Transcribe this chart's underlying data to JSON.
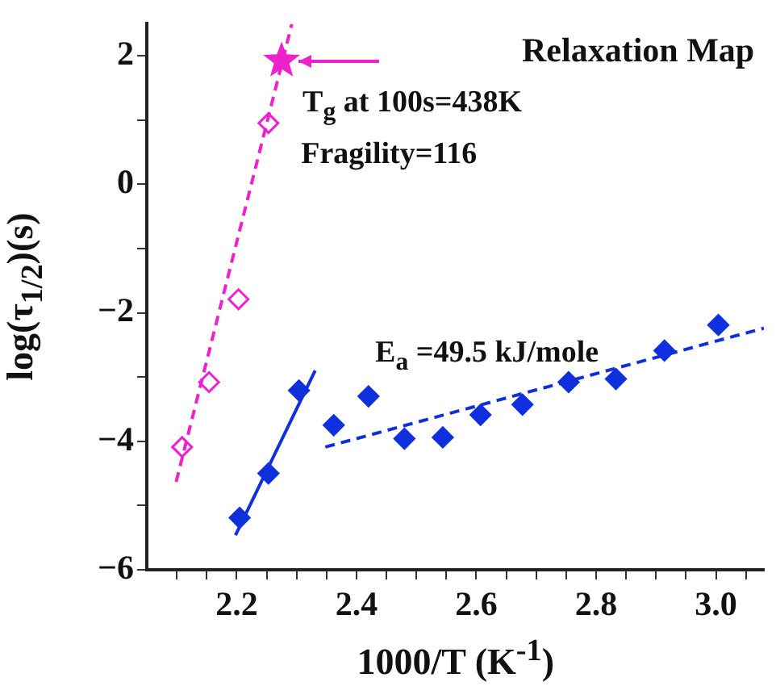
{
  "chart_data": {
    "type": "scatter",
    "title": "Relaxation Map",
    "xlabel": "1000/T (K$^{-1}$)",
    "ylabel": "log(τ$_{1/2}$)(s)",
    "xlim": [
      2.05,
      3.08
    ],
    "ylim": [
      -6,
      2.5
    ],
    "xticks": [
      {
        "value": 2.1,
        "label": null
      },
      {
        "value": 2.15,
        "label": null
      },
      2.2,
      {
        "value": 2.25,
        "label": null
      },
      {
        "value": 2.3,
        "label": null
      },
      {
        "value": 2.35,
        "label": null
      },
      2.4,
      {
        "value": 2.45,
        "label": null
      },
      {
        "value": 2.5,
        "label": null
      },
      {
        "value": 2.55,
        "label": null
      },
      2.6,
      {
        "value": 2.65,
        "label": null
      },
      {
        "value": 2.7,
        "label": null
      },
      {
        "value": 2.75,
        "label": null
      },
      2.8,
      {
        "value": 2.85,
        "label": null
      },
      {
        "value": 2.9,
        "label": null
      },
      {
        "value": 2.95,
        "label": null
      },
      {
        "value": 3.0,
        "label": "3.0"
      },
      {
        "value": 3.05,
        "label": null
      }
    ],
    "yticks": [
      -6,
      {
        "value": -5,
        "label": null
      },
      -4,
      {
        "value": -3,
        "label": null
      },
      -2,
      {
        "value": -1,
        "label": null
      },
      0,
      {
        "value": 1,
        "label": null
      },
      2
    ],
    "grid": false,
    "legend": false,
    "series": [
      {
        "type": "line",
        "color": "#ee22cc",
        "line_style": "dashed",
        "marker": "none",
        "x": [
          2.099,
          2.292
        ],
        "values": [
          -4.63,
          2.49
        ]
      },
      {
        "type": "line",
        "color": "#1030dd",
        "line_style": "solid",
        "marker": "none",
        "x": [
          2.198,
          2.331
        ],
        "values": [
          -5.46,
          -2.9
        ]
      },
      {
        "type": "line",
        "color": "#1030dd",
        "line_style": "dashed",
        "marker": "none",
        "x": [
          2.348,
          3.08
        ],
        "values": [
          -4.09,
          -2.24
        ]
      },
      {
        "type": "scatter",
        "color": "#ee22cc",
        "marker": "diamond",
        "x": [
          2.109,
          2.154,
          2.203,
          2.253
        ],
        "values": [
          -4.09,
          -3.08,
          -1.79,
          0.95
        ]
      },
      {
        "type": "scatter",
        "color": "#ee22cc",
        "marker": "star",
        "x": [
          2.275
        ],
        "values": [
          1.92
        ]
      },
      {
        "type": "scatter",
        "color": "#1030dd",
        "marker": "diamond",
        "x": [
          2.205,
          2.253,
          2.304,
          2.362,
          2.42,
          2.48,
          2.544,
          2.607,
          2.677,
          2.754,
          2.833,
          2.914,
          3.004
        ],
        "values": [
          -5.19,
          -4.5,
          -3.21,
          -3.75,
          -3.3,
          -3.96,
          -3.94,
          -3.59,
          -3.43,
          -3.08,
          -3.03,
          -2.59,
          -2.19
        ]
      }
    ],
    "annotations": [
      {
        "text": "T$_{g}$ at 100s=438K",
        "x": 2.275,
        "y": 1.92
      },
      "Fragility=116",
      "E$_{a}$ =49.5 kJ/mole"
    ]
  }
}
